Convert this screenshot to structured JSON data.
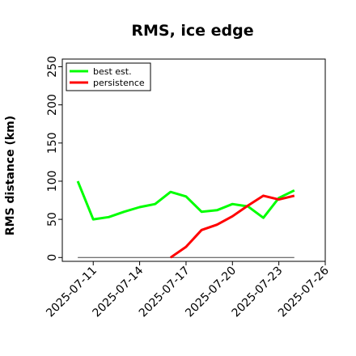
{
  "chart_data": {
    "type": "line",
    "title": "RMS, ice edge",
    "xlabel": "",
    "ylabel": "RMS distance (km)",
    "x": [
      "2025-07-10",
      "2025-07-11",
      "2025-07-12",
      "2025-07-13",
      "2025-07-14",
      "2025-07-15",
      "2025-07-16",
      "2025-07-17",
      "2025-07-18",
      "2025-07-19",
      "2025-07-20",
      "2025-07-21",
      "2025-07-22",
      "2025-07-23",
      "2025-07-24"
    ],
    "xticks": [
      "2025-07-11",
      "2025-07-14",
      "2025-07-17",
      "2025-07-20",
      "2025-07-23",
      "2025-07-26"
    ],
    "xlim": [
      "2025-07-09",
      "2025-07-26"
    ],
    "ylim": [
      -5,
      260
    ],
    "yticks": [
      0,
      50,
      100,
      150,
      200,
      250
    ],
    "legend_position": "top-left",
    "grid": false,
    "series": [
      {
        "name": "best est.",
        "color": "#00ff00",
        "values": [
          100,
          50,
          53,
          60,
          66,
          70,
          86,
          80,
          60,
          62,
          70,
          67,
          52,
          78,
          88
        ]
      },
      {
        "name": "persistence",
        "color": "#ff0000",
        "values": [
          null,
          null,
          null,
          null,
          null,
          null,
          0,
          14,
          36,
          43,
          54,
          68,
          81,
          76,
          81
        ]
      }
    ],
    "reference_line": {
      "color": "#444444",
      "value": 0,
      "x_start": "2025-07-10",
      "x_end": "2025-07-24"
    }
  }
}
